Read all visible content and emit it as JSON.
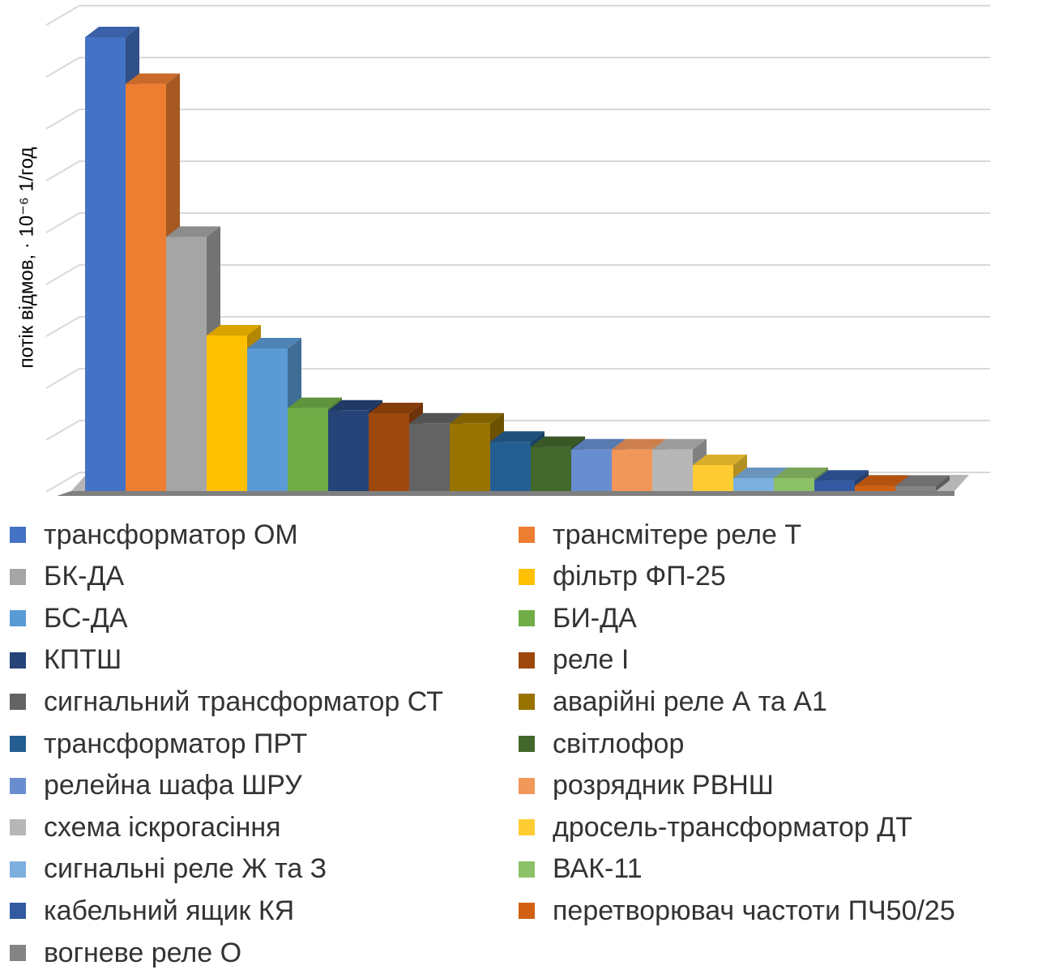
{
  "chart_data": {
    "type": "bar",
    "title": "",
    "ylabel": "потік відмов, · 10⁻⁶   1/год",
    "xlabel": "",
    "grid": true,
    "legend_position": "bottom",
    "style": "3d-column",
    "series": [
      {
        "name": "трансформатор ОМ",
        "value": 8.75,
        "color": "#4472C4"
      },
      {
        "name": "трансмітере реле Т",
        "value": 7.85,
        "color": "#ED7D31"
      },
      {
        "name": "БК-ДА",
        "value": 4.9,
        "color": "#A5A5A5"
      },
      {
        "name": "фільтр ФП-25",
        "value": 3.0,
        "color": "#FFC000"
      },
      {
        "name": "БС-ДА",
        "value": 2.75,
        "color": "#5B9BD5"
      },
      {
        "name": "БИ-ДА",
        "value": 1.6,
        "color": "#70AD47"
      },
      {
        "name": "КПТШ",
        "value": 1.55,
        "color": "#264478"
      },
      {
        "name": "реле І",
        "value": 1.5,
        "color": "#9E480E"
      },
      {
        "name": "сигнальний трансформатор СТ",
        "value": 1.3,
        "color": "#636363"
      },
      {
        "name": "аварійні реле А та А1",
        "value": 1.3,
        "color": "#997300"
      },
      {
        "name": "трансформатор ПРТ",
        "value": 0.95,
        "color": "#255E91"
      },
      {
        "name": "світлофор",
        "value": 0.85,
        "color": "#43682B"
      },
      {
        "name": "релейна шафа ШРУ",
        "value": 0.8,
        "color": "#698ED0"
      },
      {
        "name": "розрядник РВНШ",
        "value": 0.8,
        "color": "#F1975A"
      },
      {
        "name": "схема іскрогасіння",
        "value": 0.8,
        "color": "#B7B7B7"
      },
      {
        "name": "дросель-трансформатор ДТ",
        "value": 0.5,
        "color": "#FFCD33"
      },
      {
        "name": "сигнальні реле Ж та З",
        "value": 0.25,
        "color": "#7CAFDD"
      },
      {
        "name": "ВАК-11",
        "value": 0.25,
        "color": "#8CC168"
      },
      {
        "name": "кабельний ящик КЯ",
        "value": 0.2,
        "color": "#335AA1"
      },
      {
        "name": "перетворювач частоти ПЧ50/25",
        "value": 0.1,
        "color": "#D26012"
      },
      {
        "name": "вогневе реле О",
        "value": 0.05,
        "color": "#848484"
      }
    ]
  }
}
